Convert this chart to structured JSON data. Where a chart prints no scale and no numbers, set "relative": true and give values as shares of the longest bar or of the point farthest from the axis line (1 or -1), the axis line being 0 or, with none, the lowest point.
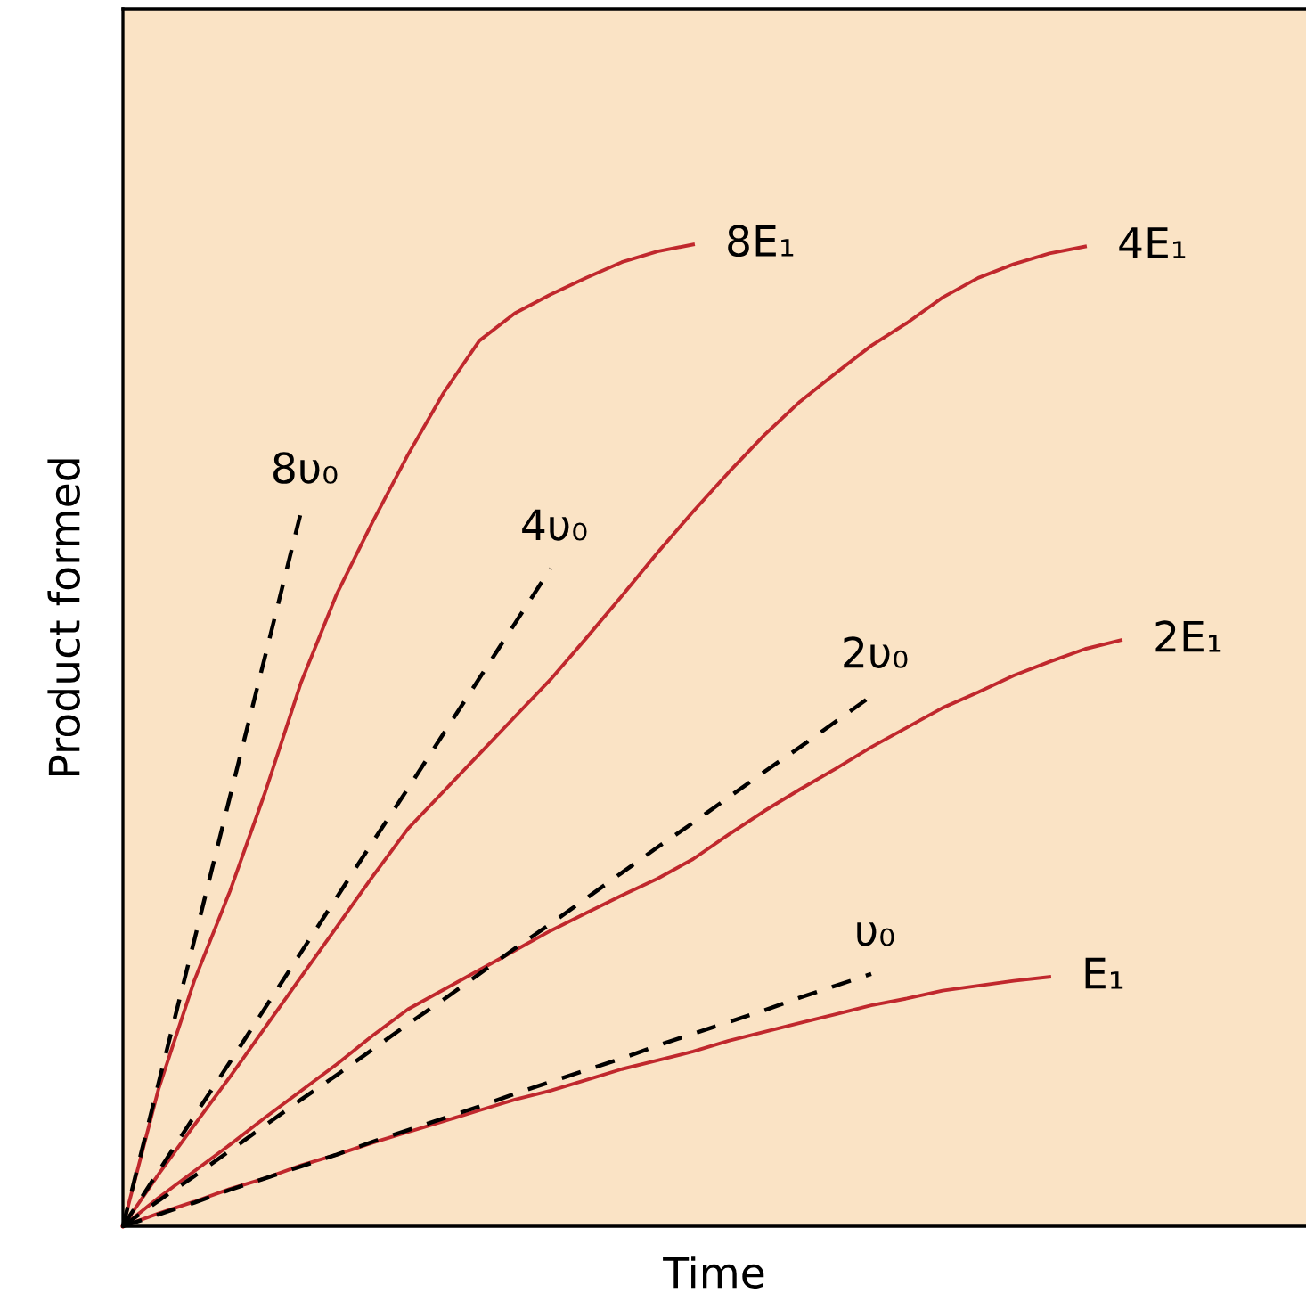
{
  "chart_data": {
    "type": "line",
    "relative": true,
    "xlabel": "Time",
    "ylabel": "Product formed",
    "legend": false,
    "grid": false,
    "tick_labels": false,
    "marker": "none",
    "categories": [
      null,
      null,
      null,
      null,
      null,
      null,
      null,
      null,
      null,
      null,
      null,
      null,
      null,
      null,
      null,
      null,
      null,
      null,
      null,
      null,
      null,
      null,
      null,
      null,
      null,
      null,
      null,
      null,
      null,
      null,
      null,
      null,
      null
    ],
    "series": [
      {
        "name": "8E₁",
        "color": "#c0282d",
        "line_style": "solid",
        "values": [
          0,
          0.14,
          0.25,
          0.341,
          0.443,
          0.554,
          0.644,
          0.717,
          0.786,
          0.849,
          0.902,
          0.93,
          0.949,
          0.966,
          0.982,
          0.993,
          1.0,
          null,
          null,
          null,
          null,
          null,
          null,
          null,
          null,
          null,
          null,
          null,
          null,
          null,
          null,
          null,
          null
        ]
      },
      {
        "name": "4E₁",
        "color": "#c0282d",
        "line_style": "solid",
        "values": [
          0,
          0.053,
          0.103,
          0.152,
          0.203,
          0.254,
          0.305,
          0.356,
          0.405,
          0.443,
          0.481,
          0.519,
          0.557,
          0.599,
          0.642,
          0.686,
          0.728,
          0.768,
          0.806,
          0.84,
          0.869,
          0.897,
          0.92,
          0.946,
          0.966,
          0.98,
          0.991,
          0.998,
          null,
          null,
          null,
          null,
          null
        ]
      },
      {
        "name": "2E₁",
        "color": "#c0282d",
        "line_style": "solid",
        "values": [
          0,
          0.029,
          0.056,
          0.083,
          0.111,
          0.138,
          0.165,
          0.194,
          0.221,
          0.241,
          0.261,
          0.281,
          0.301,
          0.319,
          0.337,
          0.354,
          0.374,
          0.399,
          0.423,
          0.445,
          0.466,
          0.488,
          0.508,
          0.528,
          0.544,
          0.561,
          0.575,
          0.588,
          0.597,
          null,
          null,
          null,
          null
        ]
      },
      {
        "name": "E₁",
        "color": "#c0282d",
        "line_style": "solid",
        "values": [
          0,
          0.013,
          0.025,
          0.038,
          0.049,
          0.062,
          0.073,
          0.085,
          0.096,
          0.107,
          0.118,
          0.129,
          0.138,
          0.149,
          0.16,
          0.169,
          0.178,
          0.189,
          0.198,
          0.207,
          0.216,
          0.225,
          0.232,
          0.24,
          0.245,
          0.25,
          0.254,
          null,
          null,
          null,
          null,
          null,
          null
        ]
      },
      {
        "name": "8υ₀",
        "color": "#000000",
        "line_style": "dashed",
        "values": [
          0,
          0.146,
          0.291,
          0.437,
          0.582,
          0.728,
          null,
          null,
          null,
          null,
          null,
          null,
          null,
          null,
          null,
          null,
          null,
          null,
          null,
          null,
          null,
          null,
          null,
          null,
          null,
          null,
          null,
          null,
          null,
          null,
          null,
          null,
          null
        ]
      },
      {
        "name": "4υ₀",
        "color": "#000000",
        "line_style": "dashed",
        "values": [
          0,
          0.056,
          0.112,
          0.167,
          0.223,
          0.279,
          0.335,
          0.391,
          0.446,
          0.502,
          0.558,
          0.614,
          0.67,
          null,
          null,
          null,
          null,
          null,
          null,
          null,
          null,
          null,
          null,
          null,
          null,
          null,
          null,
          null,
          null,
          null,
          null,
          null,
          null
        ]
      },
      {
        "name": "2υ₀",
        "color": "#000000",
        "line_style": "dashed",
        "values": [
          0,
          0.026,
          0.051,
          0.077,
          0.103,
          0.129,
          0.154,
          0.18,
          0.206,
          0.231,
          0.257,
          0.283,
          0.308,
          0.334,
          0.36,
          0.386,
          0.411,
          0.437,
          0.463,
          0.488,
          0.514,
          0.54,
          null,
          null,
          null,
          null,
          null,
          null,
          null,
          null,
          null,
          null,
          null
        ]
      },
      {
        "name": "υ₀",
        "color": "#000000",
        "line_style": "dashed",
        "values": [
          0,
          0.012,
          0.024,
          0.037,
          0.049,
          0.061,
          0.073,
          0.086,
          0.098,
          0.11,
          0.122,
          0.135,
          0.147,
          0.159,
          0.171,
          0.184,
          0.196,
          0.208,
          0.22,
          0.233,
          0.245,
          0.257,
          null,
          null,
          null,
          null,
          null,
          null,
          null,
          null,
          null,
          null,
          null
        ]
      }
    ]
  }
}
